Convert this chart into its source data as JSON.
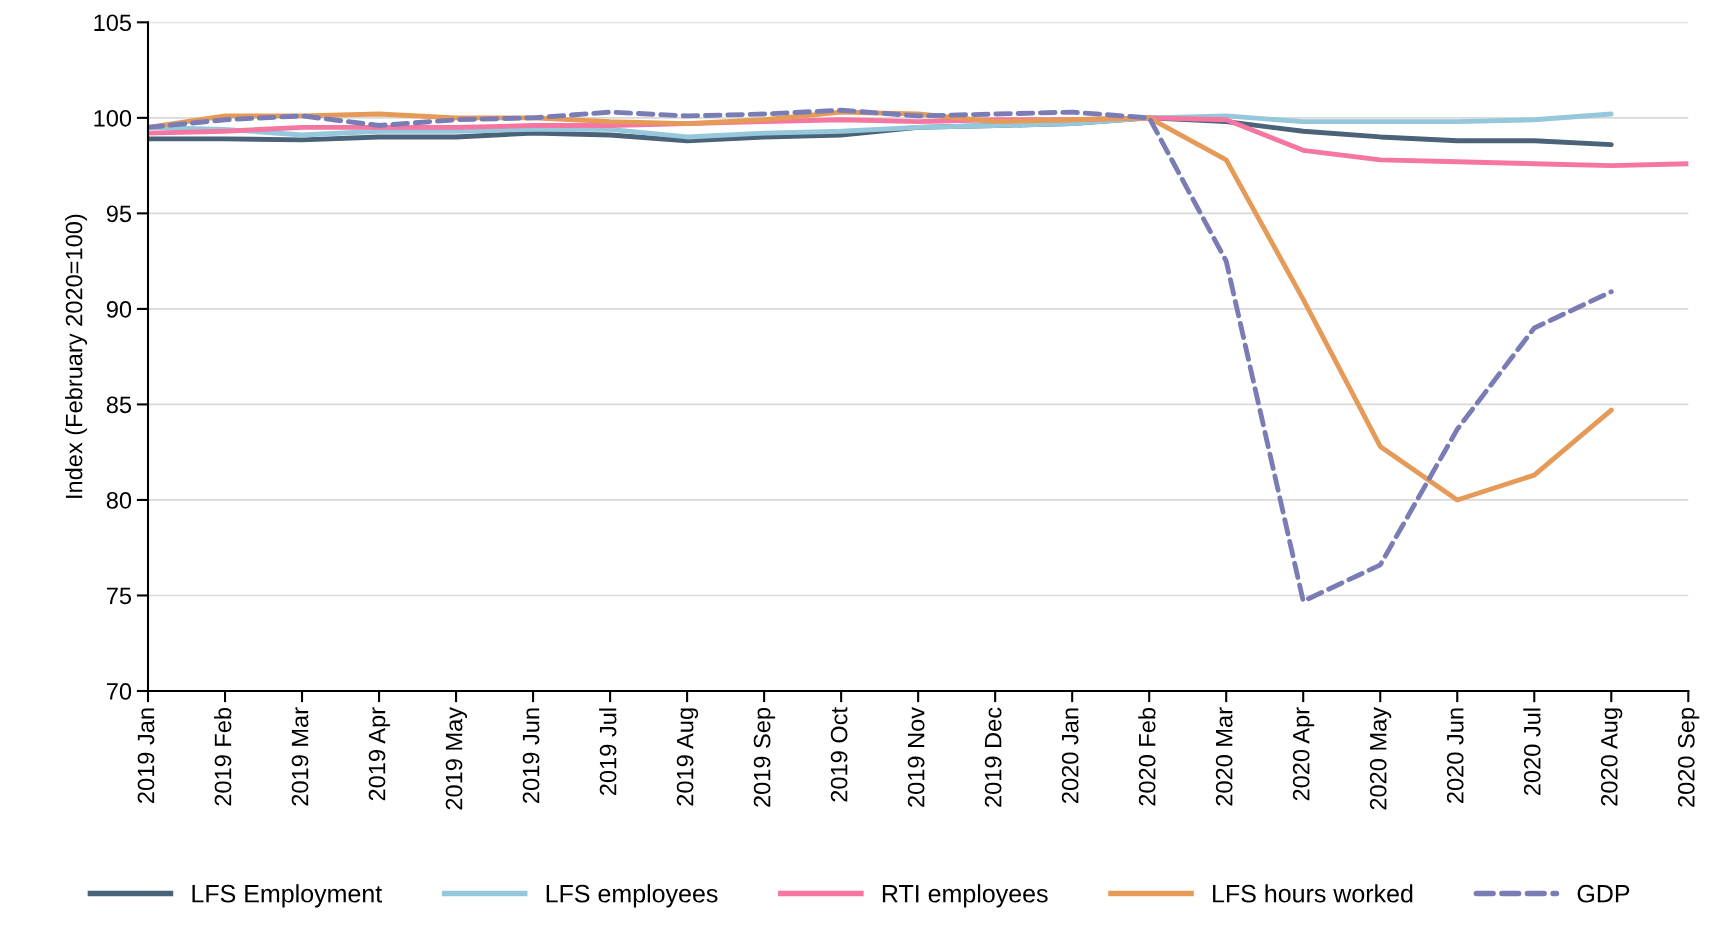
{
  "chart_data": {
    "type": "line",
    "ylabel": "Index (February 2020=100)",
    "categories": [
      "2019 Jan",
      "2019 Feb",
      "2019 Mar",
      "2019 Apr",
      "2019 May",
      "2019 Jun",
      "2019 Jul",
      "2019 Aug",
      "2019 Sep",
      "2019 Oct",
      "2019 Nov",
      "2019 Dec",
      "2020 Jan",
      "2020 Feb",
      "2020 Mar",
      "2020 Apr",
      "2020 May",
      "2020 Jun",
      "2020 Jul",
      "2020 Aug",
      "2020 Sep"
    ],
    "series": [
      {
        "name": "LFS Employment",
        "color": "#4a6378",
        "line_style": "solid",
        "values": [
          98.9,
          98.9,
          98.85,
          99.0,
          99.0,
          99.2,
          99.1,
          98.8,
          99.0,
          99.1,
          99.5,
          99.6,
          99.7,
          100,
          99.8,
          99.3,
          99.0,
          98.8,
          98.8,
          98.6,
          null
        ]
      },
      {
        "name": "LFS employees",
        "color": "#96c8dc",
        "line_style": "solid",
        "values": [
          99.5,
          99.4,
          99.1,
          99.3,
          99.3,
          99.4,
          99.4,
          99.0,
          99.2,
          99.3,
          99.5,
          99.6,
          99.7,
          100,
          100.1,
          99.8,
          99.8,
          99.8,
          99.9,
          100.2,
          null
        ]
      },
      {
        "name": "RTI employees",
        "color": "#f576a0",
        "line_style": "solid",
        "values": [
          99.2,
          99.3,
          99.5,
          99.5,
          99.5,
          99.6,
          99.6,
          99.7,
          99.8,
          99.9,
          99.8,
          99.9,
          99.9,
          100,
          99.9,
          98.3,
          97.8,
          97.7,
          97.6,
          97.5,
          97.6
        ]
      },
      {
        "name": "LFS hours worked",
        "color": "#e59a58",
        "line_style": "solid",
        "values": [
          99.5,
          100.1,
          100.1,
          100.2,
          100.0,
          100.0,
          99.8,
          99.7,
          99.9,
          100.3,
          100.2,
          99.8,
          99.9,
          100,
          97.8,
          90.5,
          82.8,
          80.0,
          81.3,
          84.7,
          null
        ]
      },
      {
        "name": "GDP",
        "color": "#7a7db5",
        "line_style": "dashed",
        "values": [
          99.5,
          99.9,
          100.1,
          99.6,
          99.9,
          100.0,
          100.3,
          100.1,
          100.2,
          100.4,
          100.1,
          100.2,
          100.3,
          100,
          92.5,
          74.7,
          76.6,
          83.7,
          89.0,
          90.9,
          null
        ]
      }
    ],
    "ylim": [
      70,
      105
    ],
    "yticks": [
      70,
      75,
      80,
      85,
      90,
      95,
      100,
      105
    ],
    "grid": "y",
    "legend": "bottom",
    "marker": "none"
  }
}
